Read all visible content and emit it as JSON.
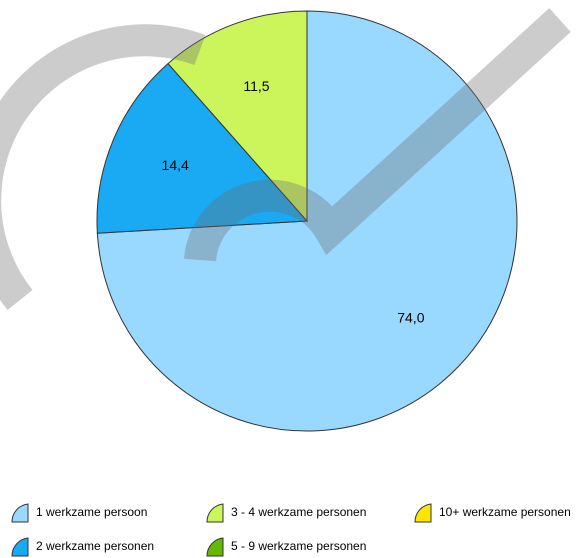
{
  "chart_data": {
    "type": "pie",
    "categories": [
      "1 werkzame persoon",
      "2 werkzame personen",
      "3 - 4 werkzame personen",
      "5 - 9 werkzame personen",
      "10+ werkzame personen"
    ],
    "values": [
      74.0,
      14.4,
      11.5,
      0,
      0
    ],
    "value_labels": [
      "74,0",
      "14,4",
      "11,5",
      null,
      null
    ],
    "colors": [
      "#99d9ff",
      "#1aa9f3",
      "#ccf55c",
      "#66b800",
      "#ffe600"
    ]
  }
}
